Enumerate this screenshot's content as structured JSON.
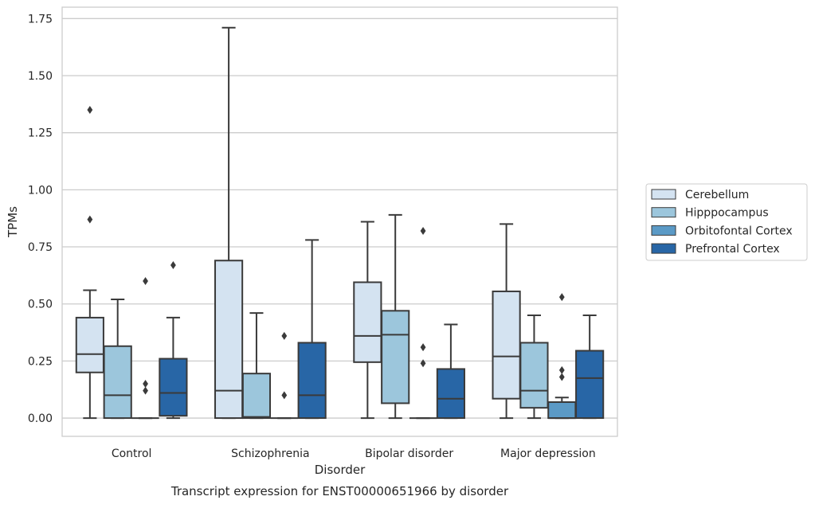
{
  "chart_data": {
    "type": "box",
    "title": "",
    "caption": "Transcript expression for ENST00000651966 by disorder",
    "xlabel": "Disorder",
    "ylabel": "TPMs",
    "ylim": [
      -0.08,
      1.8
    ],
    "yticks": [
      0.0,
      0.25,
      0.5,
      0.75,
      1.0,
      1.25,
      1.5,
      1.75
    ],
    "ytick_labels": [
      "0.00",
      "0.25",
      "0.50",
      "0.75",
      "1.00",
      "1.25",
      "1.50",
      "1.75"
    ],
    "categories": [
      "Control",
      "Schizophrenia",
      "Bipolar disorder",
      "Major depression"
    ],
    "grid": "horizontal",
    "legend_position": "right",
    "series": [
      {
        "name": "Cerebellum",
        "color": "#d4e3f1",
        "boxes": [
          {
            "whisker_low": 0.0,
            "q1": 0.2,
            "median": 0.28,
            "q3": 0.44,
            "whisker_high": 0.56,
            "outliers": [
              0.87,
              1.35
            ]
          },
          {
            "whisker_low": 0.0,
            "q1": 0.0,
            "median": 0.12,
            "q3": 0.69,
            "whisker_high": 1.71,
            "outliers": []
          },
          {
            "whisker_low": 0.0,
            "q1": 0.245,
            "median": 0.36,
            "q3": 0.595,
            "whisker_high": 0.86,
            "outliers": []
          },
          {
            "whisker_low": 0.0,
            "q1": 0.085,
            "median": 0.27,
            "q3": 0.555,
            "whisker_high": 0.85,
            "outliers": []
          }
        ]
      },
      {
        "name": "Hipppocampus",
        "color": "#9cc6dc",
        "boxes": [
          {
            "whisker_low": 0.0,
            "q1": 0.0,
            "median": 0.1,
            "q3": 0.315,
            "whisker_high": 0.52,
            "outliers": []
          },
          {
            "whisker_low": 0.0,
            "q1": 0.0,
            "median": 0.005,
            "q3": 0.195,
            "whisker_high": 0.46,
            "outliers": []
          },
          {
            "whisker_low": 0.0,
            "q1": 0.065,
            "median": 0.365,
            "q3": 0.47,
            "whisker_high": 0.89,
            "outliers": []
          },
          {
            "whisker_low": 0.0,
            "q1": 0.045,
            "median": 0.12,
            "q3": 0.33,
            "whisker_high": 0.45,
            "outliers": []
          }
        ]
      },
      {
        "name": "Orbitofontal Cortex",
        "color": "#5b9ac6",
        "boxes": [
          {
            "whisker_low": 0.0,
            "q1": 0.0,
            "median": 0.0,
            "q3": 0.0,
            "whisker_high": 0.0,
            "outliers": [
              0.12,
              0.15,
              0.6
            ]
          },
          {
            "whisker_low": 0.0,
            "q1": 0.0,
            "median": 0.0,
            "q3": 0.0,
            "whisker_high": 0.0,
            "outliers": [
              0.1,
              0.36
            ]
          },
          {
            "whisker_low": 0.0,
            "q1": 0.0,
            "median": 0.0,
            "q3": 0.0,
            "whisker_high": 0.0,
            "outliers": [
              0.24,
              0.31,
              0.82
            ]
          },
          {
            "whisker_low": 0.0,
            "q1": 0.0,
            "median": 0.0,
            "q3": 0.07,
            "whisker_high": 0.09,
            "outliers": [
              0.18,
              0.21,
              0.53
            ]
          }
        ]
      },
      {
        "name": "Prefrontal Cortex",
        "color": "#2866a6",
        "boxes": [
          {
            "whisker_low": 0.0,
            "q1": 0.01,
            "median": 0.11,
            "q3": 0.26,
            "whisker_high": 0.44,
            "outliers": [
              0.67
            ]
          },
          {
            "whisker_low": 0.0,
            "q1": 0.0,
            "median": 0.1,
            "q3": 0.33,
            "whisker_high": 0.78,
            "outliers": []
          },
          {
            "whisker_low": 0.0,
            "q1": 0.0,
            "median": 0.085,
            "q3": 0.215,
            "whisker_high": 0.41,
            "outliers": []
          },
          {
            "whisker_low": 0.0,
            "q1": 0.0,
            "median": 0.175,
            "q3": 0.295,
            "whisker_high": 0.45,
            "outliers": []
          }
        ]
      }
    ]
  },
  "style": {
    "grid_color": "#cccccc",
    "frame_color": "#cccccc",
    "line_color": "#3a3a3a",
    "legend_border": "#cccccc"
  }
}
